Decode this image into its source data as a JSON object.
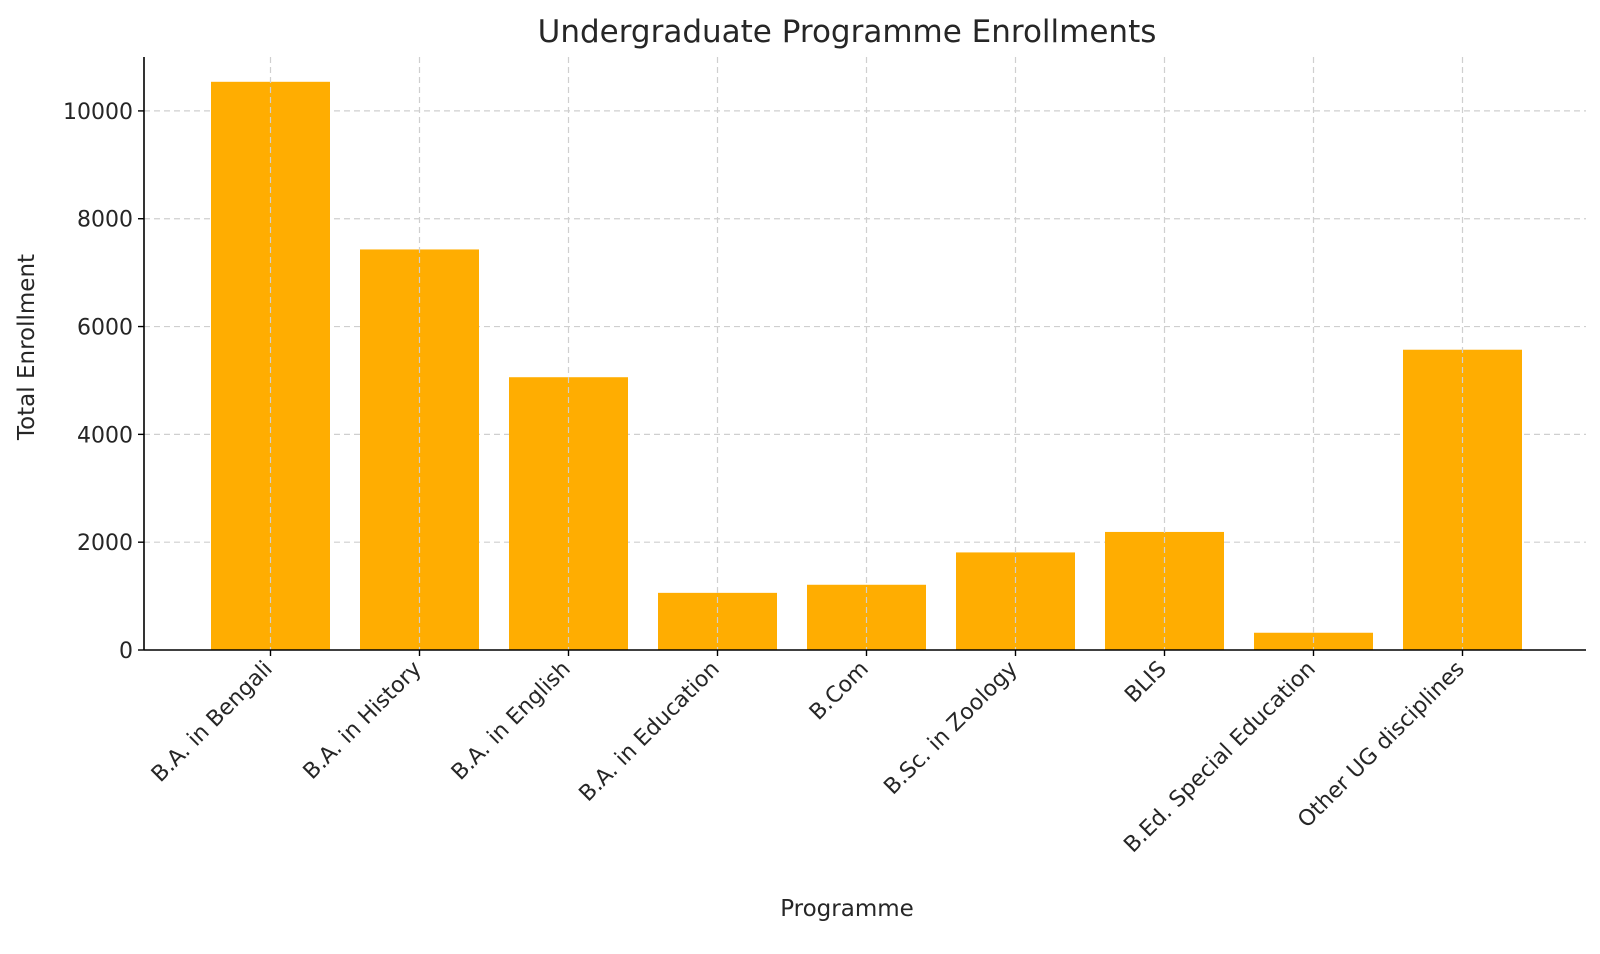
{
  "chart_data": {
    "type": "bar",
    "title": "Undergraduate Programme Enrollments",
    "xlabel": "Programme",
    "ylabel": "Total Enrollment",
    "categories": [
      "B.A. in Bengali",
      "B.A. in History",
      "B.A. in English",
      "B.A. in Education",
      "B.Com",
      "B.Sc. in Zoology",
      "BLIS",
      "B.Ed. Special Education",
      "Other UG disciplines"
    ],
    "values": [
      10540,
      7430,
      5060,
      1060,
      1210,
      1810,
      2190,
      320,
      5570
    ],
    "ylim": [
      0,
      11000
    ],
    "yticks": [
      0,
      2000,
      4000,
      6000,
      8000,
      10000
    ],
    "grid": true,
    "bar_color": "#FFAD01"
  }
}
